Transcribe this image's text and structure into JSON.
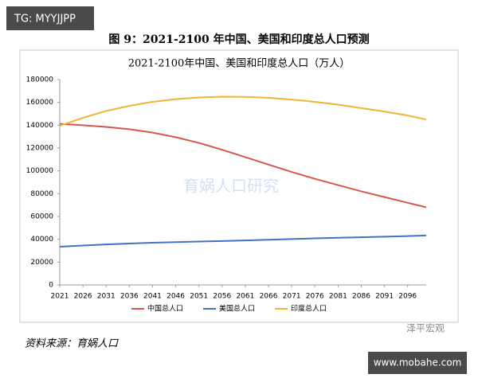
{
  "badge": "TG: MYYJJPP",
  "figure_title": "图 9：2021-2100 年中国、美国和印度总人口预测",
  "source": "资料来源：育娲人口",
  "watermarks": [
    "育娲人口研究",
    "泽平宏观",
    "www.mobahe.com"
  ],
  "chart_data": {
    "type": "line",
    "title": "2021-2100年中国、美国和印度总人口（万人）",
    "x": [
      2021,
      2026,
      2031,
      2036,
      2041,
      2046,
      2051,
      2056,
      2061,
      2066,
      2071,
      2076,
      2081,
      2086,
      2091,
      2096,
      2100
    ],
    "series": [
      {
        "name": "中国总人口",
        "color": "#d6574f",
        "values": [
          141200,
          140000,
          138500,
          136500,
          133500,
          129500,
          124500,
          118500,
          112000,
          105500,
          99000,
          93000,
          87500,
          82000,
          77000,
          72000,
          68000
        ]
      },
      {
        "name": "美国总人口",
        "color": "#4472c4",
        "values": [
          33500,
          34500,
          35500,
          36300,
          37000,
          37500,
          38000,
          38500,
          39000,
          39600,
          40200,
          40800,
          41300,
          41800,
          42300,
          42800,
          43300
        ]
      },
      {
        "name": "印度总人口",
        "color": "#f0b437",
        "values": [
          139500,
          146500,
          152500,
          157000,
          160500,
          162800,
          164300,
          165000,
          164800,
          164000,
          162500,
          160500,
          158000,
          155000,
          152000,
          148500,
          145000
        ]
      }
    ],
    "xlim": [
      2021,
      2100
    ],
    "xticks": [
      2021,
      2026,
      2031,
      2036,
      2041,
      2046,
      2051,
      2056,
      2061,
      2066,
      2071,
      2076,
      2081,
      2086,
      2091,
      2096
    ],
    "ylim": [
      0,
      180000
    ],
    "yticks": [
      0,
      20000,
      40000,
      60000,
      80000,
      100000,
      120000,
      140000,
      160000,
      180000
    ],
    "grid": false,
    "legend": "bottom"
  }
}
